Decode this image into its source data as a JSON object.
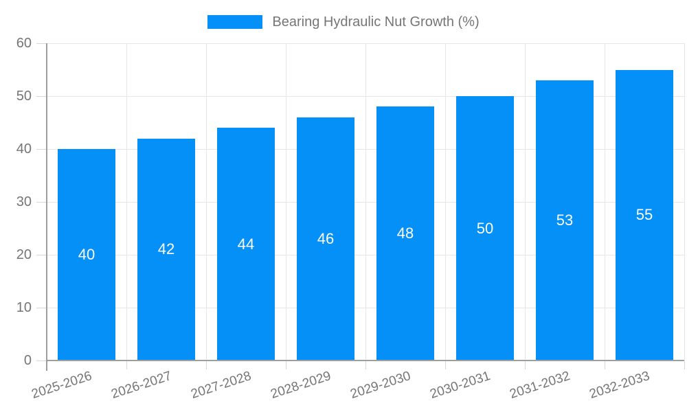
{
  "chart_data": {
    "type": "bar",
    "title": "Bearing Hydraulic Nut Growth (%)",
    "categories": [
      "2025-2026",
      "2026-2027",
      "2027-2028",
      "2028-2029",
      "2029-2030",
      "2030-2031",
      "2031-2032",
      "2032-2033"
    ],
    "values": [
      40,
      42,
      44,
      46,
      48,
      50,
      53,
      55
    ],
    "xlabel": "",
    "ylabel": "",
    "ylim": [
      0,
      60
    ],
    "yticks": [
      0,
      10,
      20,
      30,
      40,
      50,
      60
    ],
    "grid": true,
    "legend": {
      "position": "top",
      "label": "Bearing Hydraulic Nut Growth (%)"
    },
    "colors": {
      "bar": "#0590F8",
      "axis": "#9E9E9E",
      "grid": "#E6E6E6",
      "tick": "#D6D6D6",
      "text": "#757575",
      "value_label": "#FFFFFF",
      "background": "#FFFFFF"
    }
  }
}
